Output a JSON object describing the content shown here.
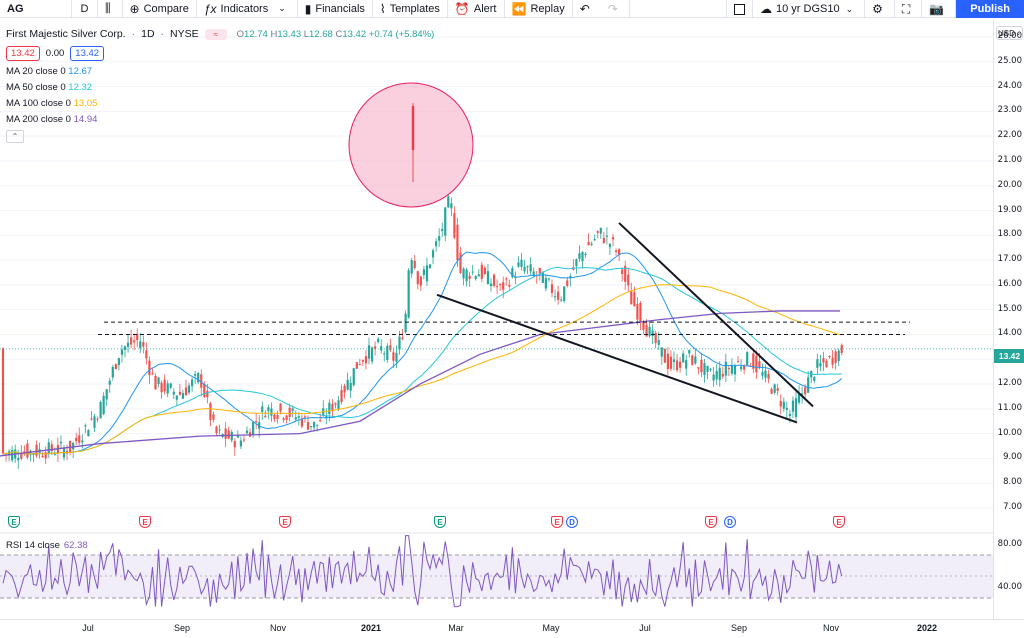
{
  "toolbar": {
    "symbol": "AG",
    "interval": "D",
    "compare": "Compare",
    "indicators": "Indicators",
    "financials": "Financials",
    "templates": "Templates",
    "alert": "Alert",
    "replay": "Replay",
    "layout_name": "10 yr DGS10",
    "publish": "Publish"
  },
  "legend": {
    "title": "First Majestic Silver Corp.",
    "interval": "1D",
    "exchange": "NYSE",
    "ohlc": {
      "o_label": "O",
      "o": "12.74",
      "h_label": "H",
      "h": "13.43",
      "l_label": "L",
      "l": "12.68",
      "c_label": "C",
      "c": "13.42",
      "change": "+0.74 (+5.84%)"
    },
    "sell_price": "13.42",
    "spread": "0.00",
    "buy_price": "13.42",
    "ma": [
      {
        "label": "MA 20 close 0",
        "value": "12.67",
        "color": "#2196f3"
      },
      {
        "label": "MA 50 close 0",
        "value": "12.32",
        "color": "#26c6da"
      },
      {
        "label": "MA 100 close 0",
        "value": "13.05",
        "color": "#ffb300"
      },
      {
        "label": "MA 200 close 0",
        "value": "14.94",
        "color": "#7e57c2"
      }
    ],
    "rsi_label": "RSI 14 close",
    "rsi_value": "62.38"
  },
  "price_scale": {
    "currency": "USD",
    "ticks": [
      "26.00",
      "25.00",
      "24.00",
      "23.00",
      "22.00",
      "21.00",
      "20.00",
      "19.00",
      "18.00",
      "17.00",
      "16.00",
      "15.00",
      "14.00",
      "13.00",
      "12.00",
      "11.00",
      "10.00",
      "9.00",
      "8.00",
      "7.00"
    ],
    "last_price": "13.42",
    "rsi_ticks": [
      "80.00",
      "40.00"
    ]
  },
  "time_axis": {
    "labels": [
      "Jul",
      "Sep",
      "Nov",
      "2021",
      "Mar",
      "May",
      "Jul",
      "Sep",
      "Nov",
      "2022"
    ]
  },
  "events": [
    "E",
    "E",
    "E",
    "E",
    "E",
    "D",
    "E",
    "D",
    "E"
  ],
  "chart_data": {
    "type": "line",
    "title": "First Majestic Silver Corp.",
    "x": [
      "2020-06",
      "2020-07",
      "2020-08",
      "2020-09",
      "2020-10",
      "2020-11",
      "2020-12",
      "2021-01",
      "2021-02",
      "2021-03",
      "2021-04",
      "2021-05",
      "2021-06",
      "2021-07",
      "2021-08",
      "2021-09",
      "2021-10",
      "2021-11"
    ],
    "series": [
      {
        "name": "",
        "values": [
          8.5,
          10.5,
          13.5,
          11.8,
          10.0,
          10.8,
          11.0,
          13.2,
          20.0,
          15.5,
          16.6,
          16.0,
          18.5,
          12.8,
          12.5,
          12.0,
          10.8,
          13.42
        ]
      }
    ],
    "ylim": [
      7,
      26
    ],
    "colors": {
      "up": "#26a69a",
      "down": "#ef5350",
      "rsi": "#7e57c2"
    }
  }
}
